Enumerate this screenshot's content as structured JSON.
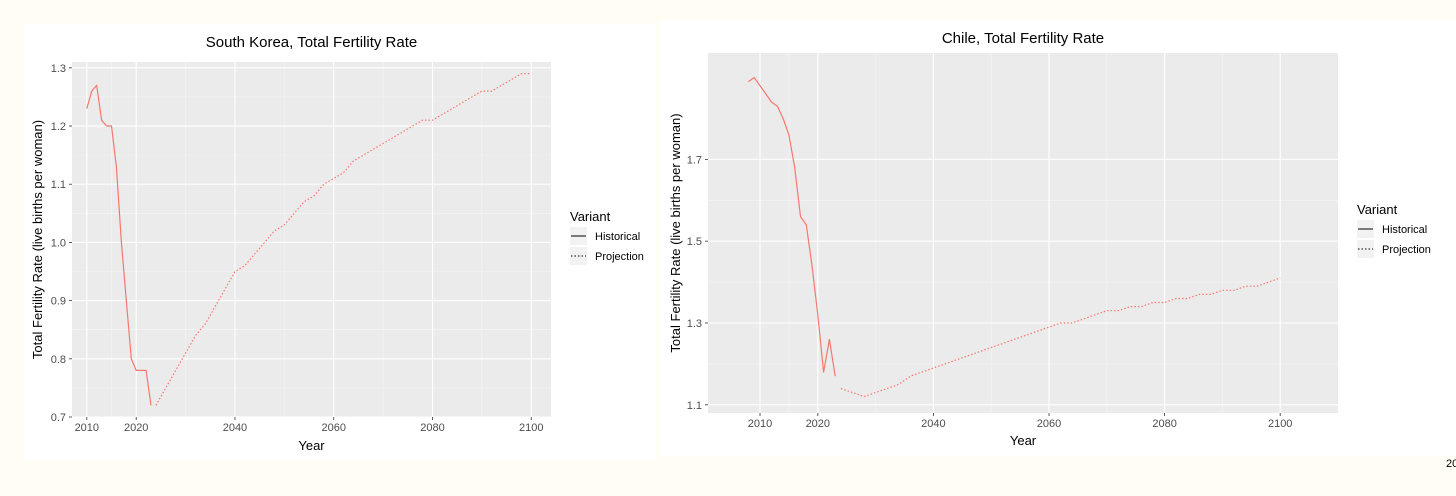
{
  "page": {
    "corner_text": "20"
  },
  "chart_data": [
    {
      "type": "line",
      "title": "South Korea, Total Fertility Rate",
      "xlabel": "Year",
      "ylabel": "Total Fertility Rate (live births per woman)",
      "xlim": [
        2007,
        2104
      ],
      "ylim": [
        0.7,
        1.31
      ],
      "xticks": [
        2010,
        2020,
        2040,
        2060,
        2080,
        2100
      ],
      "yticks": [
        0.7,
        0.8,
        0.9,
        1.0,
        1.1,
        1.2,
        1.3
      ],
      "ytick_labels": [
        "0.7",
        "0.8",
        "0.9",
        "1.0",
        "1.1",
        "1.2",
        "1.3"
      ],
      "line_color": "#f8766d",
      "grid": true,
      "legend": {
        "title": "Variant",
        "position": "right",
        "entries": [
          {
            "label": "Historical",
            "linetype": "solid"
          },
          {
            "label": "Projection",
            "linetype": "dotted"
          }
        ]
      },
      "series": [
        {
          "name": "Historical",
          "linetype": "solid",
          "x": [
            2010,
            2011,
            2012,
            2013,
            2014,
            2015,
            2016,
            2017,
            2018,
            2019,
            2020,
            2021,
            2022,
            2023
          ],
          "y": [
            1.23,
            1.26,
            1.27,
            1.21,
            1.2,
            1.2,
            1.13,
            1.0,
            0.9,
            0.8,
            0.78,
            0.78,
            0.78,
            0.72
          ]
        },
        {
          "name": "Projection",
          "linetype": "dotted",
          "x": [
            2024,
            2026,
            2028,
            2030,
            2032,
            2034,
            2036,
            2038,
            2040,
            2042,
            2044,
            2046,
            2048,
            2050,
            2052,
            2054,
            2056,
            2058,
            2060,
            2062,
            2064,
            2066,
            2068,
            2070,
            2072,
            2074,
            2076,
            2078,
            2080,
            2082,
            2084,
            2086,
            2088,
            2090,
            2092,
            2094,
            2096,
            2098,
            2100
          ],
          "y": [
            0.72,
            0.75,
            0.78,
            0.81,
            0.84,
            0.86,
            0.89,
            0.92,
            0.95,
            0.96,
            0.98,
            1.0,
            1.02,
            1.03,
            1.05,
            1.07,
            1.08,
            1.1,
            1.11,
            1.12,
            1.14,
            1.15,
            1.16,
            1.17,
            1.18,
            1.19,
            1.2,
            1.21,
            1.21,
            1.22,
            1.23,
            1.24,
            1.25,
            1.26,
            1.26,
            1.27,
            1.28,
            1.29,
            1.29
          ]
        }
      ]
    },
    {
      "type": "line",
      "title": "Chile, Total Fertility Rate",
      "xlabel": "Year",
      "ylabel": "Total Fertility Rate (live births per woman)",
      "xlim": [
        2001,
        2110
      ],
      "ylim": [
        1.08,
        1.96
      ],
      "xticks": [
        2010,
        2020,
        2040,
        2060,
        2080,
        2100
      ],
      "yticks": [
        1.1,
        1.3,
        1.5,
        1.7
      ],
      "ytick_labels": [
        "1.1",
        "1.3",
        "1.5",
        "1.7"
      ],
      "line_color": "#f8766d",
      "grid": true,
      "legend": {
        "title": "Variant",
        "position": "right",
        "entries": [
          {
            "label": "Historical",
            "linetype": "solid"
          },
          {
            "label": "Projection",
            "linetype": "dotted"
          }
        ]
      },
      "series": [
        {
          "name": "Historical",
          "linetype": "solid",
          "x": [
            2008,
            2009,
            2010,
            2011,
            2012,
            2013,
            2014,
            2015,
            2016,
            2017,
            2018,
            2019,
            2020,
            2021,
            2022,
            2023
          ],
          "y": [
            1.89,
            1.9,
            1.88,
            1.86,
            1.84,
            1.83,
            1.8,
            1.76,
            1.68,
            1.56,
            1.54,
            1.44,
            1.32,
            1.18,
            1.26,
            1.17
          ]
        },
        {
          "name": "Projection",
          "linetype": "dotted",
          "x": [
            2024,
            2026,
            2028,
            2030,
            2032,
            2034,
            2036,
            2038,
            2040,
            2042,
            2044,
            2046,
            2048,
            2050,
            2052,
            2054,
            2056,
            2058,
            2060,
            2062,
            2064,
            2066,
            2068,
            2070,
            2072,
            2074,
            2076,
            2078,
            2080,
            2082,
            2084,
            2086,
            2088,
            2090,
            2092,
            2094,
            2096,
            2098,
            2100
          ],
          "y": [
            1.14,
            1.13,
            1.12,
            1.13,
            1.14,
            1.15,
            1.17,
            1.18,
            1.19,
            1.2,
            1.21,
            1.22,
            1.23,
            1.24,
            1.25,
            1.26,
            1.27,
            1.28,
            1.29,
            1.3,
            1.3,
            1.31,
            1.32,
            1.33,
            1.33,
            1.34,
            1.34,
            1.35,
            1.35,
            1.36,
            1.36,
            1.37,
            1.37,
            1.38,
            1.38,
            1.39,
            1.39,
            1.4,
            1.41
          ]
        }
      ]
    }
  ]
}
